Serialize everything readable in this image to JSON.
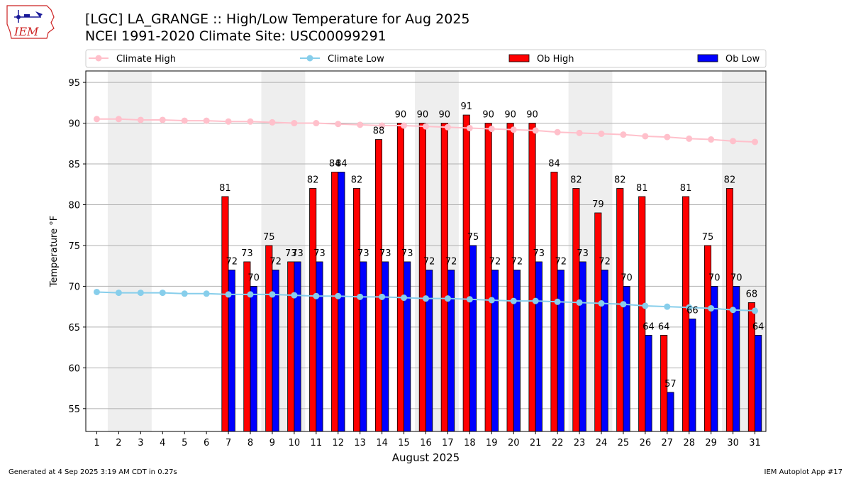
{
  "logo": {
    "text": "IEM",
    "icon": "iowa-state-map-icon",
    "color": "#cc2222"
  },
  "header": {
    "title_line1": "[LGC] LA_GRANGE :: High/Low Temperature for Aug 2025",
    "title_line2": "NCEI 1991-2020 Climate Site: USC00099291"
  },
  "footer": {
    "left": "Generated at 4 Sep 2025 3:19 AM CDT in 0.27s",
    "right": "IEM Autoplot App #17"
  },
  "chart_data": {
    "type": "bar",
    "xlabel": "August 2025",
    "ylabel": "Temperature °F",
    "ylim": [
      52.2,
      96.4
    ],
    "yticks": [
      55,
      60,
      65,
      70,
      75,
      80,
      85,
      90,
      95
    ],
    "grid": true,
    "legend_position": "top",
    "weekend_shading": [
      [
        2,
        3
      ],
      [
        9,
        10
      ],
      [
        16,
        17
      ],
      [
        23,
        24
      ],
      [
        30,
        31
      ]
    ],
    "categories": [
      "1",
      "2",
      "3",
      "4",
      "5",
      "6",
      "7",
      "8",
      "9",
      "10",
      "11",
      "12",
      "13",
      "14",
      "15",
      "16",
      "17",
      "18",
      "19",
      "20",
      "21",
      "22",
      "23",
      "24",
      "25",
      "26",
      "27",
      "28",
      "29",
      "30",
      "31"
    ],
    "series": [
      {
        "name": "Climate High",
        "kind": "line",
        "color": "#ffc0cb",
        "values": [
          90.5,
          90.5,
          90.4,
          90.4,
          90.3,
          90.3,
          90.2,
          90.2,
          90.1,
          90.0,
          90.0,
          89.9,
          89.8,
          89.7,
          89.7,
          89.6,
          89.5,
          89.4,
          89.3,
          89.2,
          89.1,
          88.9,
          88.8,
          88.7,
          88.6,
          88.4,
          88.3,
          88.1,
          88.0,
          87.8,
          87.7
        ]
      },
      {
        "name": "Climate Low",
        "kind": "line",
        "color": "#87ceeb",
        "values": [
          69.3,
          69.2,
          69.2,
          69.2,
          69.1,
          69.1,
          69.0,
          69.0,
          69.0,
          68.9,
          68.8,
          68.8,
          68.7,
          68.7,
          68.6,
          68.5,
          68.5,
          68.4,
          68.3,
          68.2,
          68.2,
          68.1,
          68.0,
          67.9,
          67.8,
          67.6,
          67.5,
          67.4,
          67.3,
          67.1,
          67.0
        ]
      },
      {
        "name": "Ob High",
        "kind": "bar",
        "color": "#ff0000",
        "values": [
          null,
          null,
          null,
          null,
          null,
          null,
          81,
          73,
          75,
          73,
          82,
          84,
          82,
          88,
          90,
          90,
          90,
          91,
          90,
          90,
          90,
          84,
          82,
          79,
          82,
          81,
          64,
          81,
          75,
          82,
          68
        ]
      },
      {
        "name": "Ob Low",
        "kind": "bar",
        "color": "#0000ff",
        "values": [
          null,
          null,
          null,
          null,
          null,
          null,
          72,
          70,
          72,
          73,
          73,
          84,
          73,
          73,
          73,
          72,
          72,
          75,
          72,
          72,
          73,
          72,
          73,
          72,
          70,
          64,
          57,
          66,
          70,
          70,
          64
        ]
      }
    ]
  }
}
